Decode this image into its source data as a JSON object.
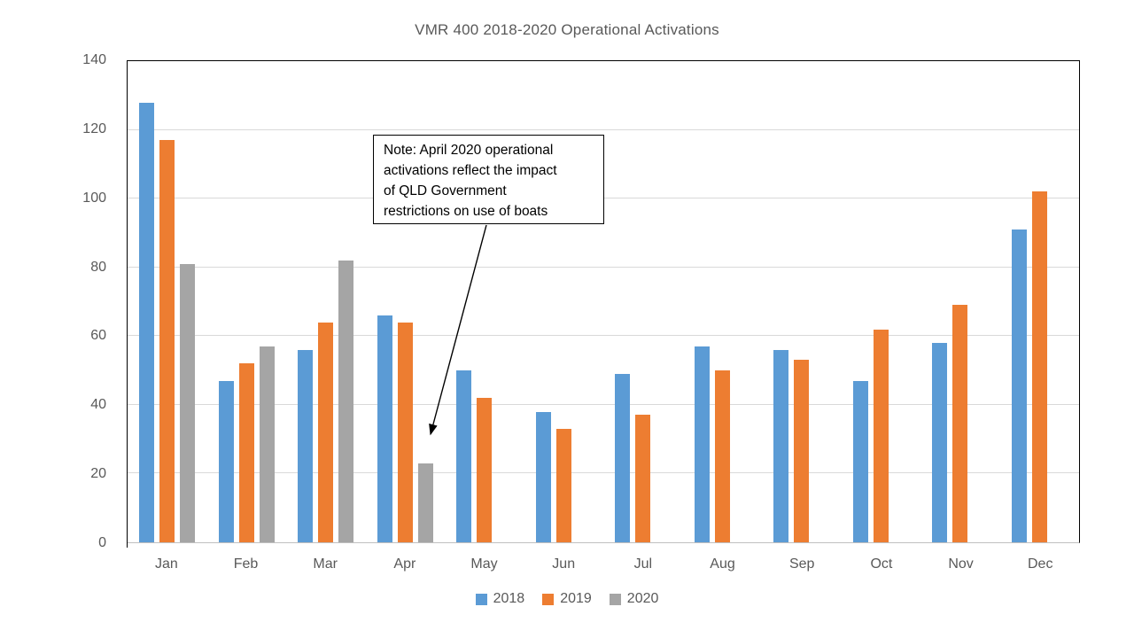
{
  "note": {
    "lines": [
      "Note: April 2020 operational",
      "activations reflect the impact",
      "of QLD Government",
      "restrictions on use of boats"
    ]
  },
  "colors": {
    "series_2018": "#5B9BD5",
    "series_2019": "#ED7D31",
    "series_2020": "#A5A5A5",
    "axis_text": "#595959",
    "gridline": "#D9D9D9",
    "plot_border": "#000000",
    "note_border": "#000000"
  },
  "chart_data": {
    "type": "bar",
    "title": "VMR 400 2018-2020 Operational Activations",
    "categories": [
      "Jan",
      "Feb",
      "Mar",
      "Apr",
      "May",
      "Jun",
      "Jul",
      "Aug",
      "Sep",
      "Oct",
      "Nov",
      "Dec"
    ],
    "series": [
      {
        "name": "2018",
        "color": "#5B9BD5",
        "values": [
          128,
          47,
          56,
          66,
          50,
          38,
          49,
          57,
          56,
          47,
          58,
          91
        ]
      },
      {
        "name": "2019",
        "color": "#ED7D31",
        "values": [
          117,
          52,
          64,
          64,
          42,
          33,
          37,
          50,
          53,
          62,
          69,
          102
        ]
      },
      {
        "name": "2020",
        "color": "#A5A5A5",
        "values": [
          81,
          57,
          82,
          23,
          null,
          null,
          null,
          null,
          null,
          null,
          null,
          null
        ]
      }
    ],
    "xlabel": "",
    "ylabel": "",
    "ylim": [
      0,
      140
    ],
    "y_ticks": [
      0,
      20,
      40,
      60,
      80,
      100,
      120,
      140
    ],
    "grid": true,
    "legend_position": "bottom",
    "annotation": {
      "text": "Note: April 2020 operational activations reflect the impact of QLD Government restrictions on use of boats",
      "points_to": "Apr 2020 bar"
    }
  }
}
